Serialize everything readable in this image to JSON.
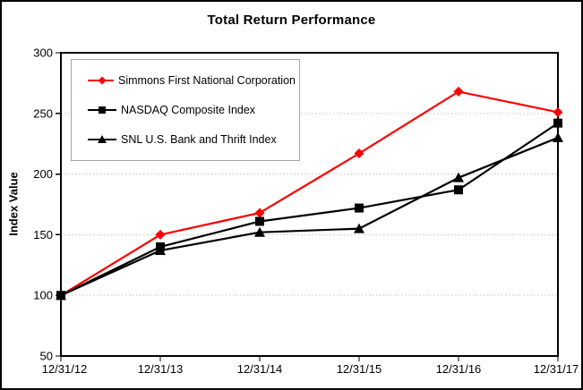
{
  "colors": {
    "accent_red": "#ff0000",
    "series_black": "#000000",
    "gridline": "#c3c3c3",
    "axis_frame": "#000000",
    "legend_border": "#a6a6a6",
    "background": "#ffffff",
    "text": "#000000"
  },
  "chart_data": {
    "type": "line",
    "title": "Total Return Performance",
    "xlabel": "",
    "ylabel": "Index Value",
    "categories": [
      "12/31/12",
      "12/31/13",
      "12/31/14",
      "12/31/15",
      "12/31/16",
      "12/31/17"
    ],
    "y_ticks": [
      50,
      100,
      150,
      200,
      250,
      300
    ],
    "ylim": [
      50,
      300
    ],
    "grid": "horizontal-dotted",
    "legend_position": "inside-top-left",
    "series": [
      {
        "name": "Simmons First National Corporation",
        "color": "#ff0000",
        "marker": "diamond",
        "values": [
          100,
          150,
          168,
          217,
          268,
          251
        ]
      },
      {
        "name": "NASDAQ Composite Index",
        "color": "#000000",
        "marker": "square",
        "values": [
          100,
          140,
          161,
          172,
          187,
          242
        ]
      },
      {
        "name": "SNL U.S. Bank and Thrift Index",
        "color": "#000000",
        "marker": "triangle",
        "values": [
          100,
          137,
          152,
          155,
          197,
          230
        ]
      }
    ]
  }
}
